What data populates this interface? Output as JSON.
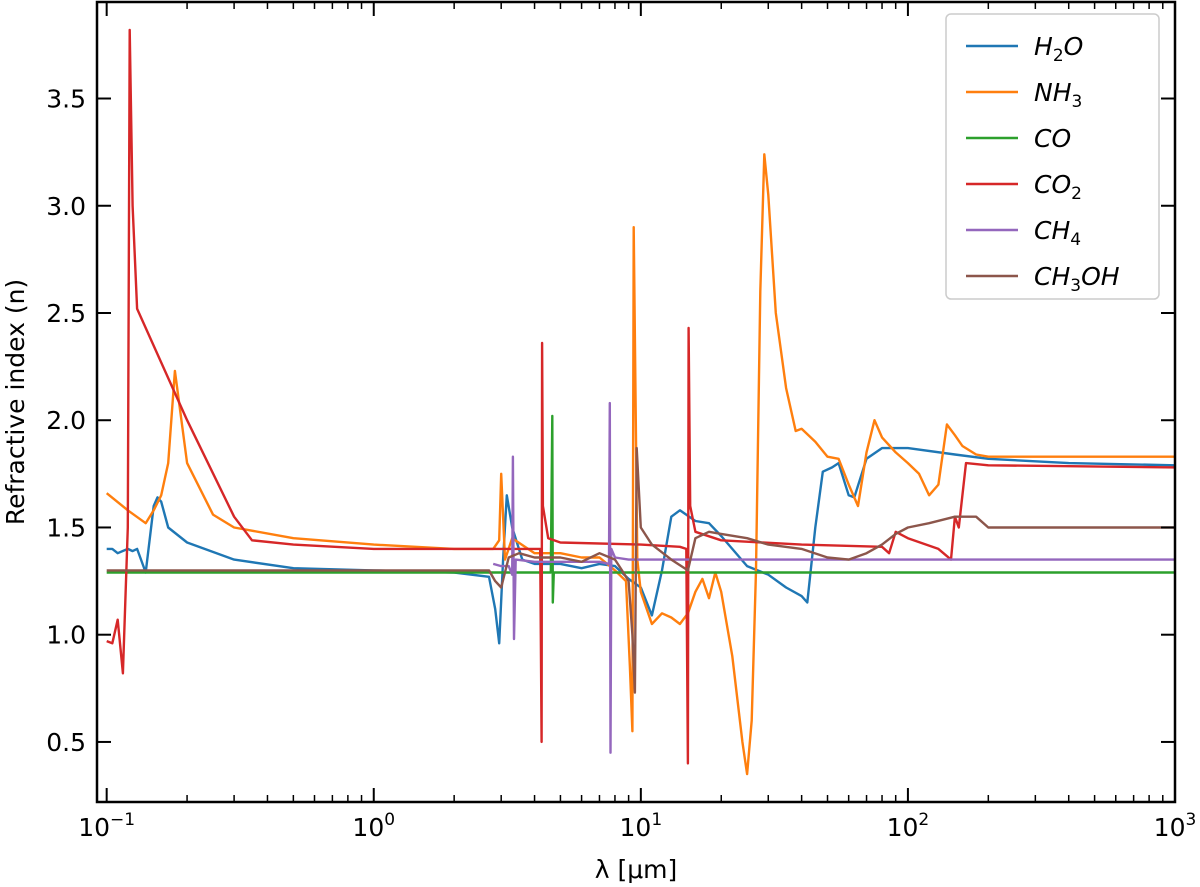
{
  "chart_data": {
    "type": "line",
    "title": "",
    "xlabel": "λ [μm]",
    "ylabel": "Refractive index (n)",
    "xscale": "log",
    "xlim": [
      0.092,
      1000
    ],
    "ylim": [
      0.22,
      3.95
    ],
    "grid": false,
    "legend_position": "top-right",
    "x_ticks": [
      {
        "value": 0.1,
        "base": "10",
        "exp": "−1"
      },
      {
        "value": 1,
        "base": "10",
        "exp": "0"
      },
      {
        "value": 10,
        "base": "10",
        "exp": "1"
      },
      {
        "value": 100,
        "base": "10",
        "exp": "2"
      },
      {
        "value": 1000,
        "base": "10",
        "exp": "3"
      }
    ],
    "y_ticks": [
      {
        "value": 0.5,
        "label": "0.5"
      },
      {
        "value": 1.0,
        "label": "1.0"
      },
      {
        "value": 1.5,
        "label": "1.5"
      },
      {
        "value": 2.0,
        "label": "2.0"
      },
      {
        "value": 2.5,
        "label": "2.5"
      },
      {
        "value": 3.0,
        "label": "3.0"
      },
      {
        "value": 3.5,
        "label": "3.5"
      }
    ],
    "series": [
      {
        "name": "H₂O",
        "label_base": "H",
        "label_sub": "2",
        "label_tail": "O",
        "color": "#1f77b4",
        "points": [
          [
            0.1,
            1.4
          ],
          [
            0.105,
            1.4
          ],
          [
            0.11,
            1.38
          ],
          [
            0.12,
            1.4
          ],
          [
            0.125,
            1.39
          ],
          [
            0.13,
            1.4
          ],
          [
            0.14,
            1.29
          ],
          [
            0.15,
            1.6
          ],
          [
            0.155,
            1.64
          ],
          [
            0.16,
            1.62
          ],
          [
            0.17,
            1.5
          ],
          [
            0.2,
            1.43
          ],
          [
            0.3,
            1.35
          ],
          [
            0.5,
            1.31
          ],
          [
            1,
            1.3
          ],
          [
            2,
            1.29
          ],
          [
            2.7,
            1.27
          ],
          [
            2.85,
            1.12
          ],
          [
            2.95,
            0.96
          ],
          [
            3.05,
            1.35
          ],
          [
            3.15,
            1.65
          ],
          [
            3.3,
            1.5
          ],
          [
            3.6,
            1.35
          ],
          [
            4,
            1.33
          ],
          [
            5,
            1.33
          ],
          [
            6,
            1.31
          ],
          [
            7,
            1.33
          ],
          [
            8,
            1.32
          ],
          [
            9,
            1.26
          ],
          [
            10,
            1.22
          ],
          [
            11,
            1.09
          ],
          [
            12,
            1.3
          ],
          [
            13,
            1.55
          ],
          [
            14,
            1.58
          ],
          [
            16,
            1.53
          ],
          [
            18,
            1.52
          ],
          [
            20,
            1.46
          ],
          [
            25,
            1.32
          ],
          [
            30,
            1.28
          ],
          [
            35,
            1.22
          ],
          [
            40,
            1.18
          ],
          [
            42,
            1.15
          ],
          [
            45,
            1.5
          ],
          [
            48,
            1.76
          ],
          [
            52,
            1.78
          ],
          [
            55,
            1.8
          ],
          [
            60,
            1.65
          ],
          [
            63,
            1.64
          ],
          [
            70,
            1.82
          ],
          [
            80,
            1.87
          ],
          [
            100,
            1.87
          ],
          [
            150,
            1.84
          ],
          [
            200,
            1.82
          ],
          [
            400,
            1.8
          ],
          [
            1000,
            1.79
          ]
        ]
      },
      {
        "name": "NH₃",
        "label_base": "NH",
        "label_sub": "3",
        "label_tail": "",
        "color": "#ff7f0e",
        "points": [
          [
            0.1,
            1.66
          ],
          [
            0.12,
            1.58
          ],
          [
            0.14,
            1.52
          ],
          [
            0.15,
            1.58
          ],
          [
            0.16,
            1.65
          ],
          [
            0.17,
            1.8
          ],
          [
            0.18,
            2.23
          ],
          [
            0.2,
            1.8
          ],
          [
            0.25,
            1.56
          ],
          [
            0.3,
            1.5
          ],
          [
            0.5,
            1.45
          ],
          [
            1,
            1.42
          ],
          [
            2,
            1.4
          ],
          [
            2.8,
            1.4
          ],
          [
            2.95,
            1.44
          ],
          [
            3.0,
            1.75
          ],
          [
            3.1,
            1.35
          ],
          [
            3.3,
            1.45
          ],
          [
            4,
            1.38
          ],
          [
            5,
            1.38
          ],
          [
            6,
            1.36
          ],
          [
            7,
            1.36
          ],
          [
            8,
            1.3
          ],
          [
            8.8,
            1.25
          ],
          [
            9.1,
            0.85
          ],
          [
            9.3,
            0.55
          ],
          [
            9.4,
            2.9
          ],
          [
            9.7,
            1.35
          ],
          [
            10,
            1.2
          ],
          [
            11,
            1.05
          ],
          [
            12,
            1.1
          ],
          [
            13,
            1.08
          ],
          [
            14,
            1.05
          ],
          [
            15,
            1.1
          ],
          [
            16,
            1.2
          ],
          [
            17,
            1.26
          ],
          [
            18,
            1.17
          ],
          [
            19,
            1.29
          ],
          [
            20,
            1.2
          ],
          [
            22,
            0.9
          ],
          [
            24,
            0.5
          ],
          [
            25,
            0.35
          ],
          [
            26,
            0.6
          ],
          [
            27,
            1.3
          ],
          [
            28,
            2.6
          ],
          [
            29,
            3.24
          ],
          [
            30,
            3.05
          ],
          [
            32,
            2.5
          ],
          [
            35,
            2.15
          ],
          [
            38,
            1.95
          ],
          [
            40,
            1.96
          ],
          [
            45,
            1.9
          ],
          [
            50,
            1.83
          ],
          [
            55,
            1.82
          ],
          [
            60,
            1.7
          ],
          [
            65,
            1.6
          ],
          [
            70,
            1.85
          ],
          [
            75,
            2.0
          ],
          [
            80,
            1.92
          ],
          [
            90,
            1.85
          ],
          [
            100,
            1.8
          ],
          [
            110,
            1.75
          ],
          [
            120,
            1.65
          ],
          [
            130,
            1.7
          ],
          [
            140,
            1.98
          ],
          [
            150,
            1.93
          ],
          [
            160,
            1.88
          ],
          [
            180,
            1.84
          ],
          [
            200,
            1.83
          ],
          [
            1000,
            1.83
          ]
        ]
      },
      {
        "name": "CO",
        "label_base": "CO",
        "label_sub": "",
        "label_tail": "",
        "color": "#2ca02c",
        "points": [
          [
            0.1,
            1.29
          ],
          [
            1,
            1.29
          ],
          [
            2,
            1.29
          ],
          [
            3,
            1.29
          ],
          [
            4,
            1.29
          ],
          [
            4.6,
            1.29
          ],
          [
            4.66,
            2.02
          ],
          [
            4.68,
            1.15
          ],
          [
            4.72,
            1.29
          ],
          [
            10,
            1.29
          ],
          [
            100,
            1.29
          ],
          [
            1000,
            1.29
          ]
        ]
      },
      {
        "name": "CO₂",
        "label_base": "CO",
        "label_sub": "2",
        "label_tail": "",
        "color": "#d62728",
        "points": [
          [
            0.1,
            0.97
          ],
          [
            0.105,
            0.96
          ],
          [
            0.11,
            1.07
          ],
          [
            0.115,
            0.82
          ],
          [
            0.12,
            1.5
          ],
          [
            0.122,
            3.82
          ],
          [
            0.125,
            3.0
          ],
          [
            0.13,
            2.52
          ],
          [
            0.2,
            2.0
          ],
          [
            0.3,
            1.55
          ],
          [
            0.35,
            1.44
          ],
          [
            0.5,
            1.42
          ],
          [
            1,
            1.4
          ],
          [
            2,
            1.4
          ],
          [
            3,
            1.4
          ],
          [
            4,
            1.4
          ],
          [
            4.2,
            1.4
          ],
          [
            4.25,
            0.5
          ],
          [
            4.27,
            2.36
          ],
          [
            4.3,
            1.6
          ],
          [
            4.5,
            1.45
          ],
          [
            5,
            1.43
          ],
          [
            10,
            1.42
          ],
          [
            14,
            1.41
          ],
          [
            14.8,
            1.4
          ],
          [
            15.0,
            0.4
          ],
          [
            15.1,
            2.43
          ],
          [
            15.3,
            1.6
          ],
          [
            16,
            1.48
          ],
          [
            20,
            1.44
          ],
          [
            40,
            1.42
          ],
          [
            80,
            1.41
          ],
          [
            85,
            1.38
          ],
          [
            90,
            1.48
          ],
          [
            100,
            1.45
          ],
          [
            130,
            1.4
          ],
          [
            145,
            1.35
          ],
          [
            150,
            1.55
          ],
          [
            155,
            1.5
          ],
          [
            165,
            1.8
          ],
          [
            200,
            1.79
          ],
          [
            1000,
            1.78
          ]
        ]
      },
      {
        "name": "CH₄",
        "label_base": "CH",
        "label_sub": "4",
        "label_tail": "",
        "color": "#9467bd",
        "points": [
          [
            2.8,
            1.33
          ],
          [
            3.0,
            1.32
          ],
          [
            3.2,
            1.32
          ],
          [
            3.3,
            1.28
          ],
          [
            3.32,
            1.83
          ],
          [
            3.35,
            0.98
          ],
          [
            3.4,
            1.35
          ],
          [
            4,
            1.34
          ],
          [
            5,
            1.34
          ],
          [
            6,
            1.34
          ],
          [
            7,
            1.34
          ],
          [
            7.6,
            1.33
          ],
          [
            7.65,
            2.08
          ],
          [
            7.7,
            0.45
          ],
          [
            7.75,
            1.4
          ],
          [
            8,
            1.36
          ],
          [
            9,
            1.35
          ],
          [
            10,
            1.35
          ],
          [
            100,
            1.35
          ],
          [
            1000,
            1.35
          ]
        ]
      },
      {
        "name": "CH₃OH",
        "label_base": "CH",
        "label_sub": "3",
        "label_tail": "OH",
        "color": "#8c564b",
        "points": [
          [
            0.1,
            1.3
          ],
          [
            1,
            1.3
          ],
          [
            2,
            1.3
          ],
          [
            2.7,
            1.3
          ],
          [
            2.85,
            1.25
          ],
          [
            3.0,
            1.22
          ],
          [
            3.2,
            1.36
          ],
          [
            3.5,
            1.38
          ],
          [
            4,
            1.36
          ],
          [
            5,
            1.36
          ],
          [
            6,
            1.34
          ],
          [
            7,
            1.38
          ],
          [
            8,
            1.35
          ],
          [
            8.5,
            1.3
          ],
          [
            9,
            1.25
          ],
          [
            9.3,
            1.0
          ],
          [
            9.5,
            0.73
          ],
          [
            9.65,
            1.87
          ],
          [
            10,
            1.5
          ],
          [
            11,
            1.42
          ],
          [
            13,
            1.35
          ],
          [
            15,
            1.3
          ],
          [
            16,
            1.45
          ],
          [
            18,
            1.48
          ],
          [
            20,
            1.47
          ],
          [
            25,
            1.45
          ],
          [
            30,
            1.42
          ],
          [
            40,
            1.4
          ],
          [
            50,
            1.36
          ],
          [
            60,
            1.35
          ],
          [
            70,
            1.38
          ],
          [
            80,
            1.42
          ],
          [
            90,
            1.47
          ],
          [
            100,
            1.5
          ],
          [
            120,
            1.52
          ],
          [
            150,
            1.55
          ],
          [
            180,
            1.55
          ],
          [
            200,
            1.5
          ],
          [
            1000,
            1.5
          ]
        ]
      }
    ]
  }
}
